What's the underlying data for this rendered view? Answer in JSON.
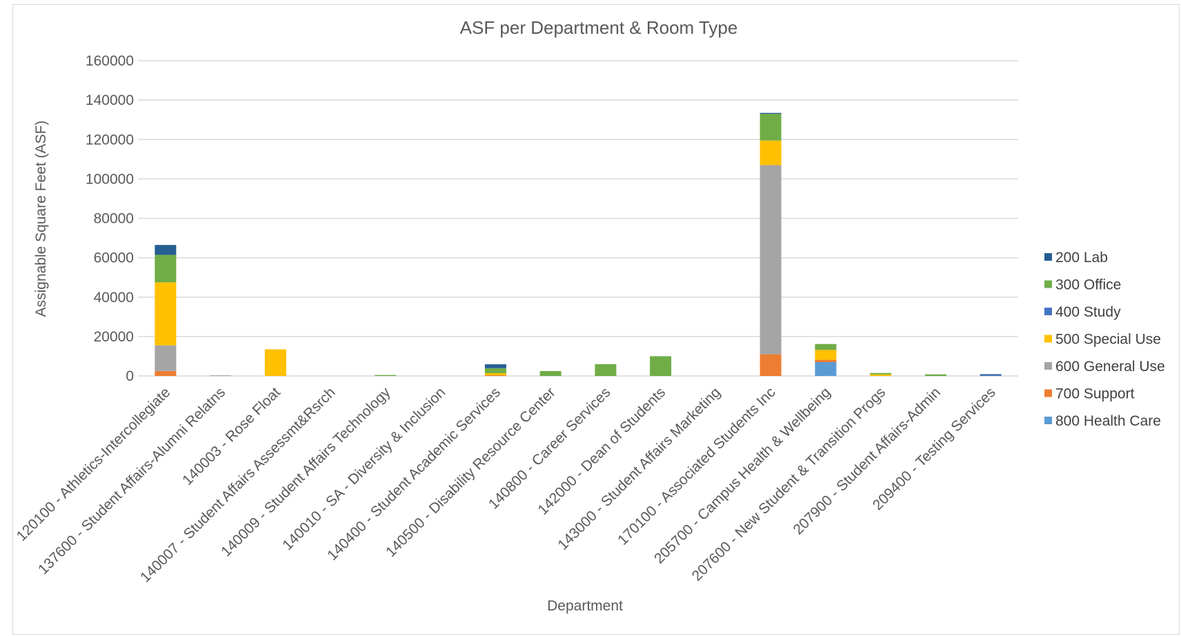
{
  "chart_data": {
    "type": "bar",
    "stacked": true,
    "title": "ASF per Department & Room Type",
    "xlabel": "Department",
    "ylabel": "Assignable Square Feet (ASF)",
    "ylim": [
      0,
      160000
    ],
    "yticks": [
      "0",
      "20000",
      "40000",
      "60000",
      "80000",
      "100000",
      "120000",
      "140000",
      "160000"
    ],
    "grid": true,
    "legend_position": "right",
    "categories": [
      "120100 - Athletics-Intercollegiate",
      "137600 - Student Affairs-Alumni Relatns",
      "140003 - Rose Float",
      "140007 - Student Affairs Assessmt&Rsrch",
      "140009 - Student Affairs Technology",
      "140010 - SA - Diversity & Inclusion",
      "140400 - Student Academic Services",
      "140500 - Disability Resource Center",
      "140800 - Career Services",
      "142000 - Dean of Students",
      "143000 - Student Affairs Marketing",
      "170100 - Associated Students Inc",
      "205700 - Campus Health & Wellbeing",
      "207600 - New Student & Transition Progs",
      "207900 - Student Affairs-Admin",
      "209400 - Testing Services"
    ],
    "series": [
      {
        "name": "800 Health Care",
        "color": "#5b9bd5",
        "values": [
          0,
          0,
          0,
          0,
          0,
          0,
          0,
          0,
          0,
          0,
          0,
          0,
          7000,
          0,
          0,
          0
        ]
      },
      {
        "name": "700 Support",
        "color": "#ed7d31",
        "values": [
          2500,
          0,
          0,
          0,
          0,
          0,
          400,
          0,
          0,
          0,
          0,
          11000,
          1200,
          0,
          0,
          0
        ]
      },
      {
        "name": "600 General Use",
        "color": "#a5a5a5",
        "values": [
          13000,
          300,
          0,
          0,
          0,
          0,
          0,
          0,
          0,
          0,
          0,
          96000,
          0,
          0,
          0,
          0
        ]
      },
      {
        "name": "500 Special Use",
        "color": "#ffc000",
        "values": [
          32000,
          0,
          13500,
          0,
          0,
          0,
          1000,
          0,
          0,
          0,
          0,
          12500,
          5000,
          800,
          0,
          0
        ]
      },
      {
        "name": "400 Study",
        "color": "#4472c4",
        "values": [
          0,
          0,
          0,
          0,
          0,
          0,
          0,
          0,
          0,
          0,
          0,
          0,
          0,
          0,
          0,
          500
        ]
      },
      {
        "name": "300 Office",
        "color": "#70ad47",
        "values": [
          14000,
          0,
          0,
          0,
          500,
          0,
          2500,
          2500,
          6000,
          10000,
          0,
          13500,
          3000,
          700,
          800,
          0
        ]
      },
      {
        "name": "200 Lab",
        "color": "#255e91",
        "values": [
          5000,
          0,
          0,
          0,
          0,
          0,
          2000,
          0,
          0,
          0,
          0,
          500,
          0,
          0,
          0,
          400
        ]
      }
    ],
    "legend_order": [
      "200 Lab",
      "300 Office",
      "400 Study",
      "500 Special Use",
      "600 General Use",
      "700 Support",
      "800 Health Care"
    ]
  }
}
